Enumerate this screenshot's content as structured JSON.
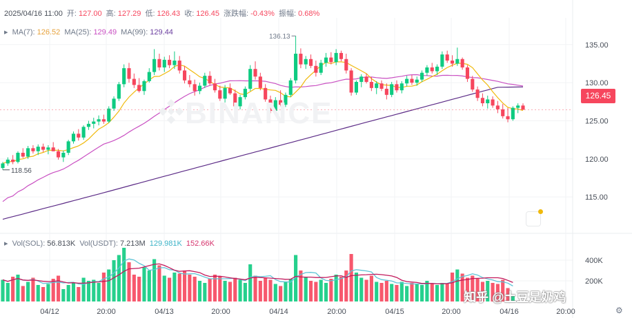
{
  "header": {
    "date": "2025/04/16 11:00",
    "open_label": "开:",
    "open": "127.00",
    "high_label": "高:",
    "high": "127.29",
    "low_label": "低:",
    "low": "126.43",
    "close_label": "收:",
    "close": "126.45",
    "change_label": "涨跌幅:",
    "change": "-0.43%",
    "amp_label": "振幅:",
    "amp": "0.68%"
  },
  "ma": {
    "ma7_label": "MA(7):",
    "ma7": "126.52",
    "ma25_label": "MA(25):",
    "ma25": "129.49",
    "ma99_label": "MA(99):",
    "ma99": "129.44"
  },
  "vol": {
    "sol_label": "Vol(SOL):",
    "sol": "56.813K",
    "usdt_label": "Vol(USDT):",
    "usdt": "7.213M",
    "ma1": "129.981K",
    "ma2": "152.66K"
  },
  "watermark": "BINANCE",
  "price_tag": "126.45",
  "high_marker": "136.13",
  "low_marker": "118.56",
  "footer_text": "知乎 @土豆是奶鸡",
  "colors": {
    "up": "#0ecb81",
    "down": "#f6465d",
    "ma7": "#f0b90b",
    "ma25": "#c94fc2",
    "ma99": "#5b2a86",
    "vol_ma1": "#5ec4d6",
    "vol_ma2": "#c2185b",
    "grid": "#f2f3f5",
    "axis_text": "#474d57"
  },
  "chart_data": {
    "type": "candlestick",
    "price_axis": {
      "ticks": [
        115,
        120,
        125,
        130,
        135
      ],
      "tick_labels": [
        "115.00",
        "120.00",
        "125.00",
        "130.00",
        "135.00"
      ],
      "range": [
        110.5,
        138.5
      ]
    },
    "volume_axis": {
      "ticks": [
        200000,
        400000
      ],
      "tick_labels": [
        "200K",
        "400K"
      ],
      "range": [
        0,
        520000
      ]
    },
    "time_labels": [
      "04/12",
      "20:00",
      "04/13",
      "20:00",
      "04/14",
      "20:00",
      "04/15",
      "20:00",
      "04/16",
      "20:00"
    ],
    "candles": [
      [
        118.8,
        119.6,
        118.56,
        119.4
      ],
      [
        119.4,
        120.2,
        119.1,
        119.9
      ],
      [
        119.9,
        120.5,
        119.3,
        119.6
      ],
      [
        119.6,
        121.0,
        119.4,
        120.8
      ],
      [
        120.8,
        121.4,
        120.1,
        120.3
      ],
      [
        120.3,
        121.7,
        120.0,
        121.4
      ],
      [
        121.4,
        121.8,
        120.7,
        121.0
      ],
      [
        121.0,
        121.9,
        120.5,
        121.6
      ],
      [
        121.6,
        122.0,
        120.9,
        121.2
      ],
      [
        121.2,
        121.8,
        120.6,
        121.5
      ],
      [
        121.5,
        122.2,
        121.0,
        121.0
      ],
      [
        121.0,
        121.3,
        119.9,
        120.2
      ],
      [
        120.2,
        121.1,
        119.6,
        120.8
      ],
      [
        120.8,
        122.5,
        120.5,
        122.3
      ],
      [
        122.3,
        123.6,
        122.0,
        123.3
      ],
      [
        123.3,
        123.9,
        122.4,
        122.8
      ],
      [
        122.8,
        124.4,
        122.5,
        124.2
      ],
      [
        124.2,
        125.0,
        123.8,
        124.6
      ],
      [
        124.6,
        125.4,
        124.0,
        124.9
      ],
      [
        124.9,
        125.7,
        124.4,
        125.2
      ],
      [
        125.2,
        125.8,
        124.6,
        124.9
      ],
      [
        124.9,
        126.9,
        124.7,
        126.6
      ],
      [
        126.6,
        128.2,
        126.3,
        127.9
      ],
      [
        127.9,
        130.1,
        127.6,
        129.8
      ],
      [
        129.8,
        132.4,
        129.4,
        131.9
      ],
      [
        131.9,
        132.6,
        130.0,
        130.5
      ],
      [
        130.5,
        131.2,
        129.3,
        129.7
      ],
      [
        129.7,
        130.6,
        128.7,
        128.9
      ],
      [
        128.9,
        130.4,
        128.4,
        130.2
      ],
      [
        130.2,
        131.9,
        130.0,
        131.4
      ],
      [
        131.4,
        134.4,
        131.0,
        133.1
      ],
      [
        133.1,
        133.8,
        131.6,
        132.0
      ],
      [
        132.0,
        133.4,
        131.4,
        133.0
      ],
      [
        133.0,
        133.6,
        131.9,
        132.3
      ],
      [
        132.3,
        134.1,
        131.8,
        132.9
      ],
      [
        132.9,
        133.5,
        131.2,
        131.6
      ],
      [
        131.6,
        132.2,
        129.9,
        130.3
      ],
      [
        130.3,
        131.0,
        129.4,
        129.8
      ],
      [
        129.8,
        130.4,
        128.3,
        128.9
      ],
      [
        128.9,
        130.0,
        128.5,
        129.6
      ],
      [
        129.6,
        131.3,
        129.3,
        130.9
      ],
      [
        130.9,
        131.5,
        129.6,
        129.9
      ],
      [
        129.9,
        130.5,
        128.7,
        129.0
      ],
      [
        129.0,
        129.6,
        127.6,
        127.9
      ],
      [
        127.9,
        129.7,
        127.4,
        129.3
      ],
      [
        129.3,
        129.9,
        128.4,
        128.6
      ],
      [
        128.6,
        129.1,
        126.6,
        126.9
      ],
      [
        126.9,
        128.4,
        126.5,
        128.1
      ],
      [
        128.1,
        129.5,
        127.8,
        129.2
      ],
      [
        129.2,
        132.3,
        128.9,
        131.8
      ],
      [
        131.8,
        132.8,
        130.4,
        130.8
      ],
      [
        130.8,
        131.3,
        129.0,
        129.3
      ],
      [
        129.3,
        129.8,
        127.5,
        127.8
      ],
      [
        127.8,
        128.3,
        126.0,
        126.3
      ],
      [
        126.3,
        128.1,
        126.0,
        127.7
      ],
      [
        127.7,
        129.0,
        126.9,
        127.1
      ],
      [
        127.1,
        128.7,
        126.8,
        128.4
      ],
      [
        128.4,
        130.6,
        128.1,
        130.3
      ],
      [
        130.3,
        136.13,
        129.9,
        133.8
      ],
      [
        133.8,
        134.5,
        131.9,
        132.4
      ],
      [
        132.4,
        133.5,
        131.8,
        133.1
      ],
      [
        133.1,
        133.7,
        131.9,
        132.2
      ],
      [
        132.2,
        132.9,
        130.8,
        131.3
      ],
      [
        131.3,
        133.0,
        131.0,
        132.6
      ],
      [
        132.6,
        133.9,
        132.1,
        133.3
      ],
      [
        133.3,
        134.0,
        132.4,
        132.7
      ],
      [
        132.7,
        134.4,
        132.3,
        133.9
      ],
      [
        133.9,
        134.2,
        132.8,
        133.1
      ],
      [
        133.1,
        133.8,
        131.2,
        131.6
      ],
      [
        131.6,
        131.9,
        128.3,
        128.7
      ],
      [
        128.7,
        130.3,
        128.4,
        130.1
      ],
      [
        130.1,
        131.1,
        129.4,
        130.8
      ],
      [
        130.8,
        131.2,
        129.9,
        130.1
      ],
      [
        130.1,
        130.7,
        128.9,
        129.3
      ],
      [
        129.3,
        130.2,
        128.5,
        129.9
      ],
      [
        129.9,
        130.3,
        128.9,
        129.2
      ],
      [
        129.2,
        129.9,
        127.8,
        128.4
      ],
      [
        128.4,
        130.1,
        128.1,
        129.8
      ],
      [
        129.8,
        130.3,
        128.7,
        129.0
      ],
      [
        129.0,
        130.2,
        128.6,
        129.9
      ],
      [
        129.9,
        130.9,
        129.5,
        130.5
      ],
      [
        130.5,
        131.0,
        129.7,
        130.0
      ],
      [
        130.0,
        130.8,
        129.6,
        130.4
      ],
      [
        130.4,
        131.6,
        130.1,
        131.3
      ],
      [
        131.3,
        132.3,
        130.9,
        132.0
      ],
      [
        132.0,
        132.6,
        131.2,
        131.5
      ],
      [
        131.5,
        132.4,
        131.0,
        132.1
      ],
      [
        132.1,
        134.1,
        131.8,
        133.7
      ],
      [
        133.7,
        134.2,
        132.6,
        132.9
      ],
      [
        132.9,
        133.6,
        132.1,
        132.5
      ],
      [
        132.5,
        134.6,
        132.2,
        133.1
      ],
      [
        133.1,
        133.3,
        131.7,
        132.0
      ],
      [
        132.0,
        132.3,
        130.1,
        130.5
      ],
      [
        130.5,
        130.9,
        128.8,
        129.1
      ],
      [
        129.1,
        129.5,
        127.6,
        128.0
      ],
      [
        128.0,
        128.6,
        126.9,
        127.3
      ],
      [
        127.3,
        128.3,
        126.6,
        127.8
      ],
      [
        127.8,
        128.2,
        126.7,
        127.0
      ],
      [
        127.0,
        127.6,
        126.0,
        126.5
      ],
      [
        126.5,
        127.2,
        125.3,
        125.6
      ],
      [
        125.6,
        126.7,
        124.8,
        125.2
      ],
      [
        125.2,
        126.9,
        125.0,
        126.7
      ],
      [
        126.7,
        127.29,
        126.0,
        127.0
      ],
      [
        127.0,
        127.29,
        126.43,
        126.45
      ]
    ],
    "volume": [
      210000,
      180000,
      240000,
      260000,
      150000,
      190000,
      230000,
      160000,
      140000,
      170000,
      220000,
      250000,
      120000,
      160000,
      180000,
      140000,
      230000,
      200000,
      210000,
      180000,
      280000,
      310000,
      400000,
      450000,
      520000,
      380000,
      260000,
      240000,
      330000,
      300000,
      410000,
      350000,
      250000,
      230000,
      280000,
      270000,
      300000,
      260000,
      240000,
      200000,
      180000,
      220000,
      260000,
      240000,
      200000,
      190000,
      230000,
      210000,
      180000,
      360000,
      250000,
      200000,
      230000,
      210000,
      170000,
      150000,
      190000,
      220000,
      450000,
      300000,
      240000,
      200000,
      190000,
      210000,
      180000,
      220000,
      260000,
      240000,
      300000,
      460000,
      280000,
      230000,
      210000,
      250000,
      190000,
      180000,
      200000,
      170000,
      160000,
      190000,
      150000,
      180000,
      170000,
      160000,
      200000,
      170000,
      160000,
      180000,
      170000,
      280000,
      310000,
      270000,
      230000,
      250000,
      220000,
      190000,
      200000,
      180000,
      170000,
      210000,
      130000,
      60000
    ]
  }
}
